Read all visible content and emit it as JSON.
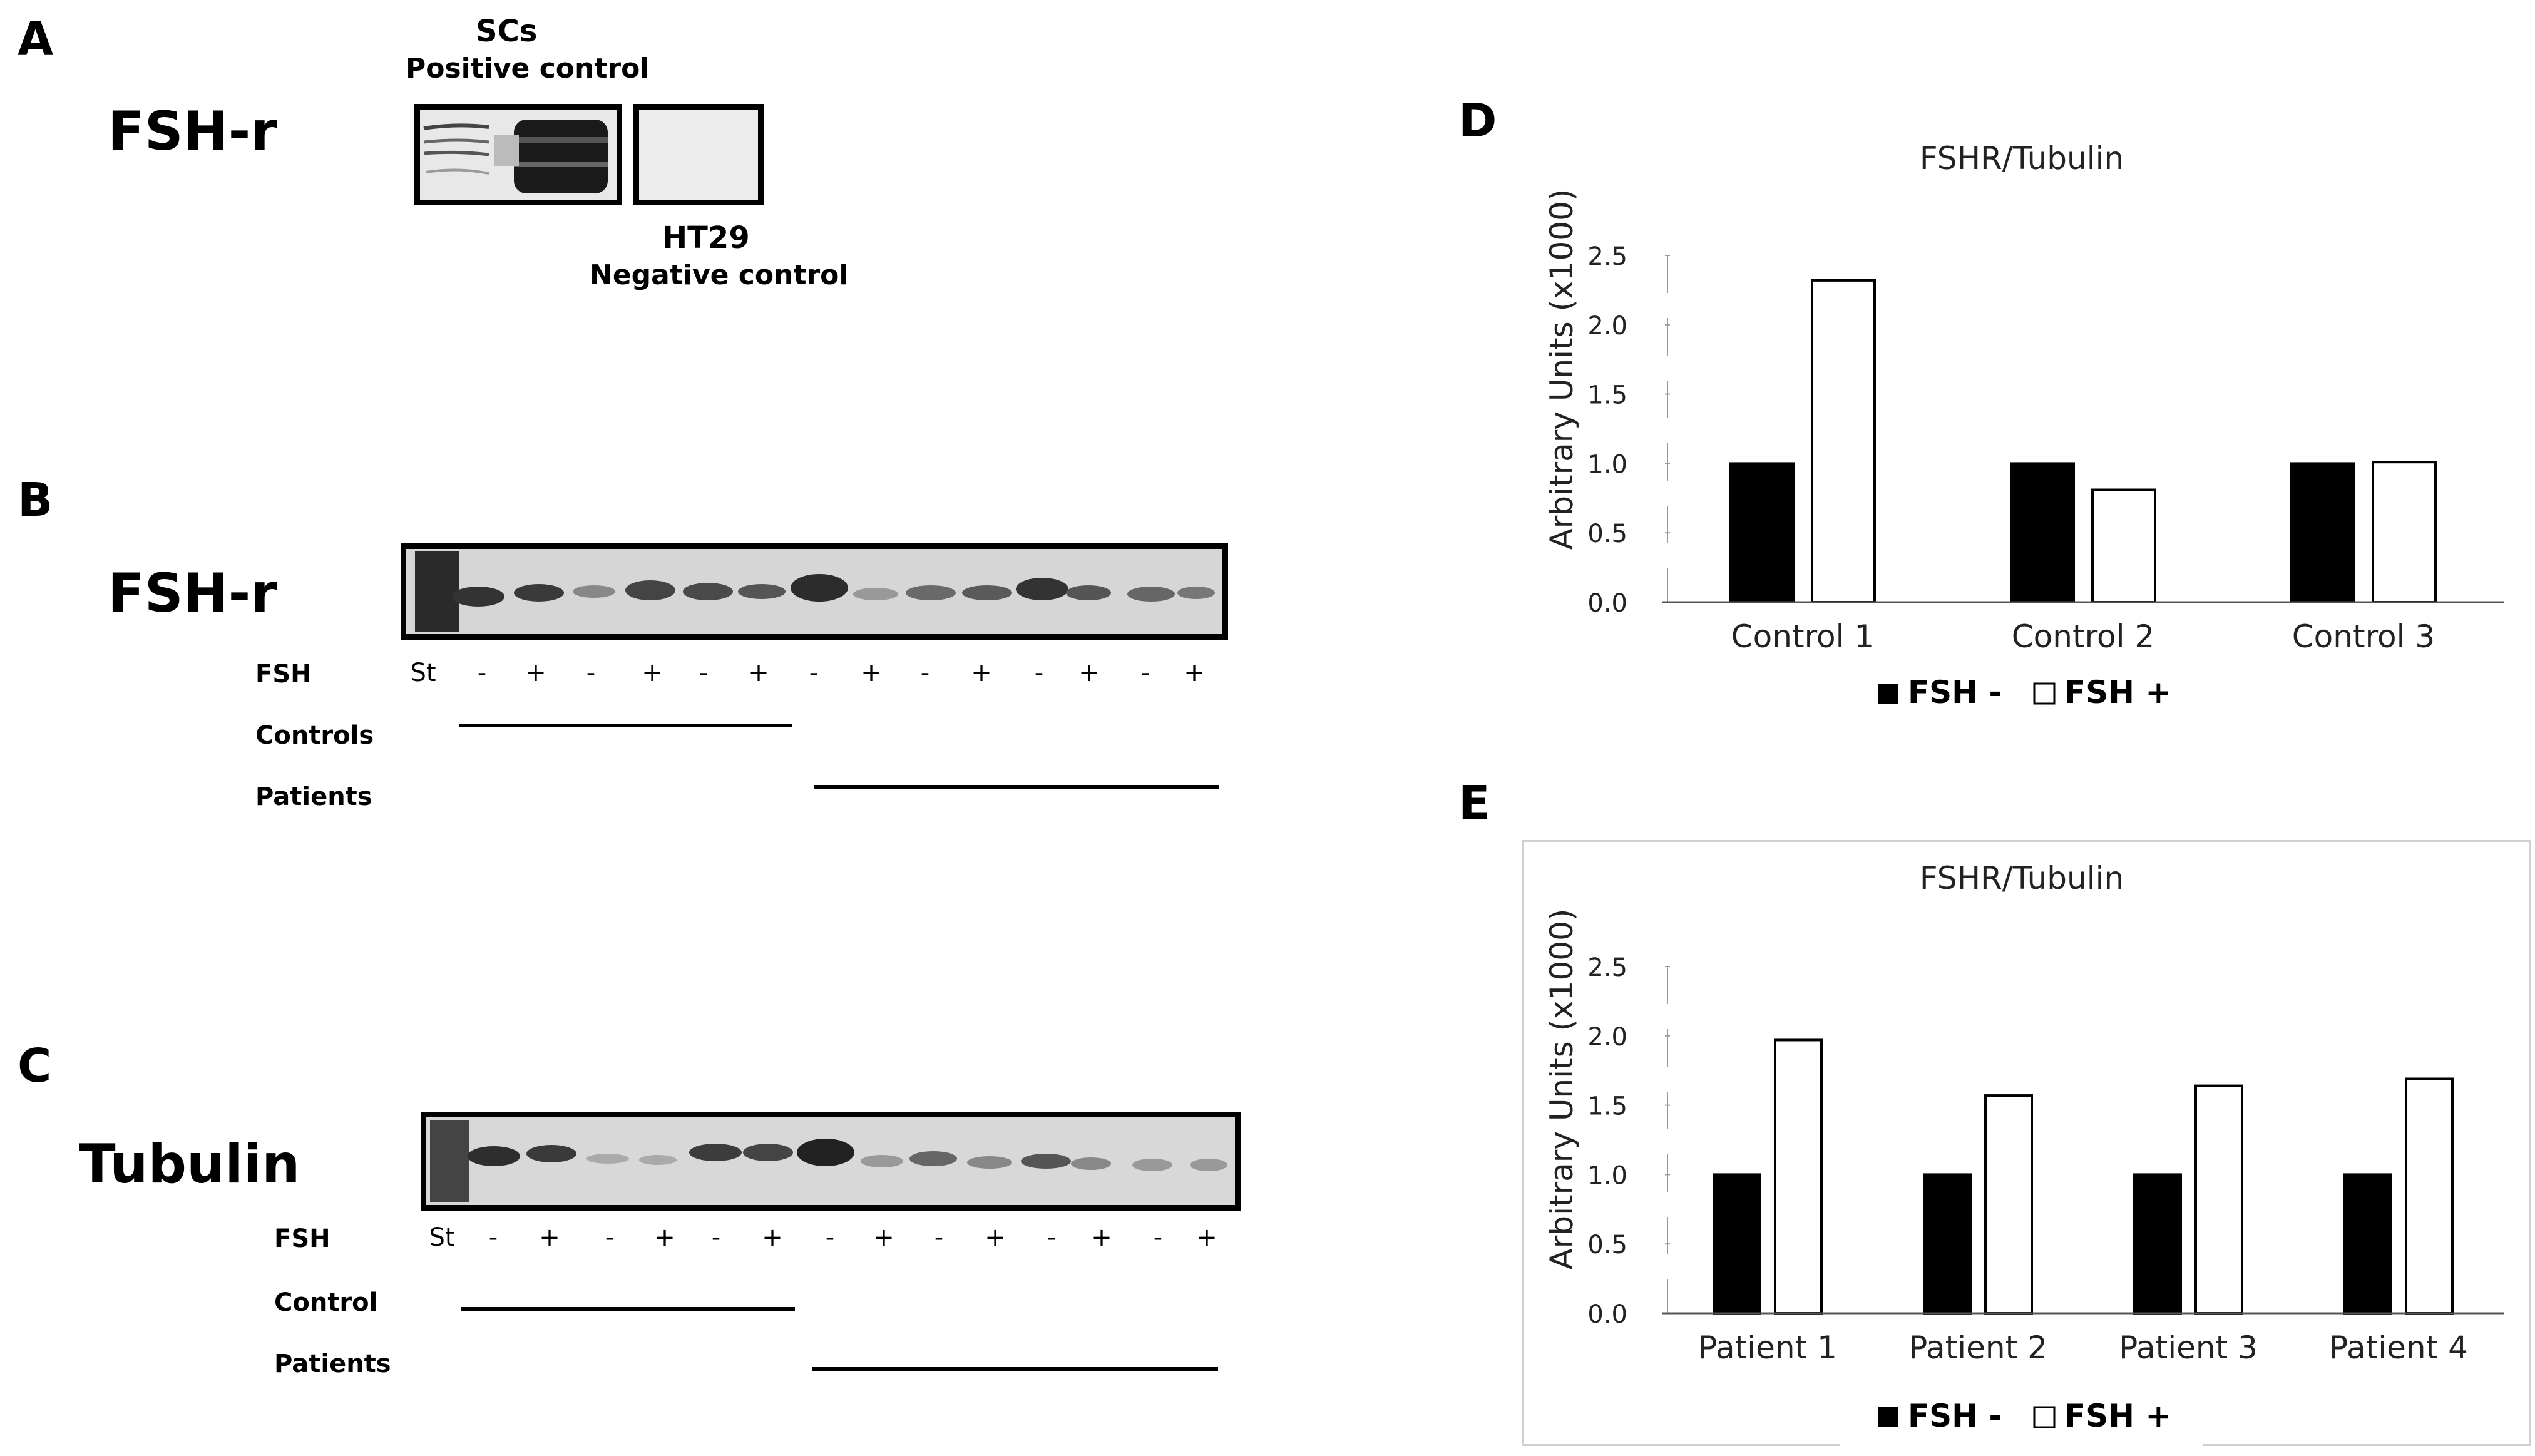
{
  "panel_a": {
    "letter": "A",
    "title": "FSH-r",
    "positive_title": "SCs",
    "positive_sub": "Positive control",
    "negative_title": "HT29",
    "negative_sub": "Negative control"
  },
  "panel_b": {
    "letter": "B",
    "title": "FSH-r",
    "row_fsh": "FSH",
    "lanes": [
      "St",
      "-",
      "+",
      "-",
      "+",
      "-",
      "+",
      "-",
      "+",
      "-",
      "+",
      "-",
      "+",
      "-",
      "+"
    ],
    "row_controls": "Controls",
    "row_patients": "Patients"
  },
  "panel_c": {
    "letter": "C",
    "title": "Tubulin",
    "row_fsh": "FSH",
    "lanes": [
      "St",
      "-",
      "+",
      "-",
      "+",
      "-",
      "+",
      "-",
      "+",
      "-",
      "+",
      "-",
      "+",
      "-",
      "+"
    ],
    "row_controls": "Control",
    "row_patients": "Patients"
  },
  "legend": {
    "fsh_minus": "FSH -",
    "fsh_plus": "FSH +",
    "fsh_minus_color": "#000000",
    "fsh_plus_color": "#ffffff"
  },
  "chart_data": [
    {
      "panel": "D",
      "type": "bar",
      "title": "FSHR/Tubulin",
      "ylabel": "Arbitrary Units (x1000)",
      "ylim": [
        0,
        2.5
      ],
      "yticks": [
        "0.0",
        "0.5",
        "1.0",
        "1.5",
        "2.0",
        "2.5"
      ],
      "categories": [
        "Control 1",
        "Control 2",
        "Control 3"
      ],
      "series": [
        {
          "name": "FSH -",
          "values": [
            1.0,
            1.0,
            1.0
          ]
        },
        {
          "name": "FSH +",
          "values": [
            2.32,
            0.81,
            1.01
          ]
        }
      ]
    },
    {
      "panel": "E",
      "type": "bar",
      "title": "FSHR/Tubulin",
      "ylabel": "Arbitrary Units (x1000)",
      "ylim": [
        0,
        2.5
      ],
      "yticks": [
        "0.0",
        "0.5",
        "1.0",
        "1.5",
        "2.0",
        "2.5"
      ],
      "categories": [
        "Patient 1",
        "Patient 2",
        "Patient 3",
        "Patient 4"
      ],
      "series": [
        {
          "name": "FSH -",
          "values": [
            1.0,
            1.0,
            1.0,
            1.0
          ]
        },
        {
          "name": "FSH +",
          "values": [
            1.97,
            1.57,
            1.64,
            1.69
          ]
        }
      ]
    }
  ]
}
